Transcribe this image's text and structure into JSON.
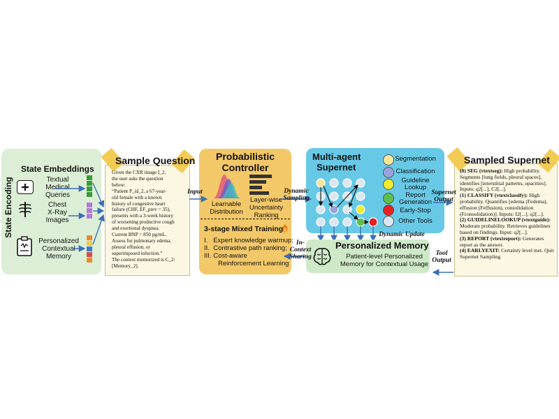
{
  "state_panel": {
    "vertical_label": "State Encoding",
    "title": "State  Embeddings",
    "items": [
      {
        "label_lines": [
          "Textual",
          "Medical",
          "Queries"
        ],
        "icon": "medical-chat-icon",
        "vector_color": "#3a9a3a"
      },
      {
        "label_lines": [
          "Chest",
          "X-Ray",
          "Images"
        ],
        "icon": "chest-xray-icon",
        "vector_color": "#b37bd6"
      },
      {
        "label_lines": [
          "Personalized",
          "Contextual",
          "Memory"
        ],
        "icon": "clipboard-memory-icon",
        "vector_colors": [
          "#e98a2f",
          "#f3c844",
          "#3d7cc9",
          "#d64b4b",
          "#e98a2f"
        ]
      }
    ]
  },
  "sample_question": {
    "title": "Sample Question",
    "lines": [
      "Given the CXR image I_2,",
      "the user asks  the question",
      "below:",
      "“Patient P_id_2, a 67-year-",
      "old female with a known",
      "history of congestive heart",
      "failure (CHF, EF_prev = 35),",
      "presents with a 3-week history",
      "of worsening productive cough",
      "and exertional dyspnea.",
      "Current BNP = 850 pg/mL.",
      "Assess for pulmonary edema,",
      "pleural effusion, or",
      "superimposed infection.”",
      "The context memorized is C_2:",
      "[Memory_2]."
    ]
  },
  "arrows": {
    "input": "Input",
    "dynamic_sampling": [
      "Dynamic",
      "Sampling"
    ],
    "supernet_output": [
      "Supernet",
      "Output"
    ],
    "dynamic_update": "Dynamic Update",
    "in_context_sharing": [
      "In-",
      "Context",
      "Sharing"
    ],
    "tool_output": [
      "Tool",
      "Output"
    ]
  },
  "controller": {
    "title_lines": [
      "Probabilistic",
      "Controller"
    ],
    "learnable_label": [
      "Learnable",
      "Distribution"
    ],
    "ranking_label": [
      "Layer-wise",
      "Uncertainty",
      "Ranking"
    ],
    "training_title": "3-stage Mixed Training",
    "fire_icon": "fire-icon",
    "training_items": [
      {
        "num": "I.",
        "text": "Expert knowledge warmup;"
      },
      {
        "num": "II.",
        "text": "Contrastive path ranking;"
      },
      {
        "num": "III.",
        "text": "Cost-aware"
      },
      {
        "num": "",
        "text": "Reinforcement Learning"
      }
    ]
  },
  "supernet": {
    "title_lines": [
      "Multi-agent",
      "Supernet"
    ],
    "legend": [
      {
        "label": "Segmentation",
        "color": "#f6e79a"
      },
      {
        "label": "Classification",
        "color": "#9aa4dc"
      },
      {
        "label": "Guideline\nLookup",
        "color": "#f2ec2e"
      },
      {
        "label": "Report\nGeneration",
        "color": "#5fbf4a"
      },
      {
        "label": "Early-Stop",
        "color": "#e82020"
      },
      {
        "label": "Other Tools",
        "color": "#dde6f0"
      }
    ]
  },
  "memory": {
    "title": "Personalized Memory",
    "subtitle": "Patient-level Personalized Memory for Contextual Usage",
    "icon": "brain-icon"
  },
  "sampled_supernet": {
    "title": "Sampled Supernet",
    "entries": [
      {
        "head": "(0) SEG (vtextseg):",
        "text": " High probability. Segments [lung fields, pleural spaces], identifies [interstitial patterns, opacities]. Inputs: q2[...], C2[...]."
      },
      {
        "head": "(1) CLASSIFY (vtextclassify):",
        "text": " High probability. Quantifies [edema (Fedema), effusion (Feffusion), consolidation (Fconsolidation)]. Inputs: I2[...], q2[...]."
      },
      {
        "head": "(2) GUIDELINELOOKUP (vtextguide):",
        "text": " Moderate probability. Retrieves guidelines based on findings. Input: q2[...]."
      },
      {
        "head": "(3) REPORT (vtextreport):",
        "text": " Generates report as the answer."
      },
      {
        "head": "(4) EARLYEXIT:",
        "text": " Certainty level met. Quit Supernet Sampling."
      }
    ]
  },
  "colors": {
    "state_bg": "#dcefd6",
    "controller_bg": "#f3c868",
    "supernet_bg": "#67c9e6",
    "memory_bg": "#cfe9c8",
    "note_bg": "#fbf7e3",
    "arrow": "#3b6fb6"
  }
}
